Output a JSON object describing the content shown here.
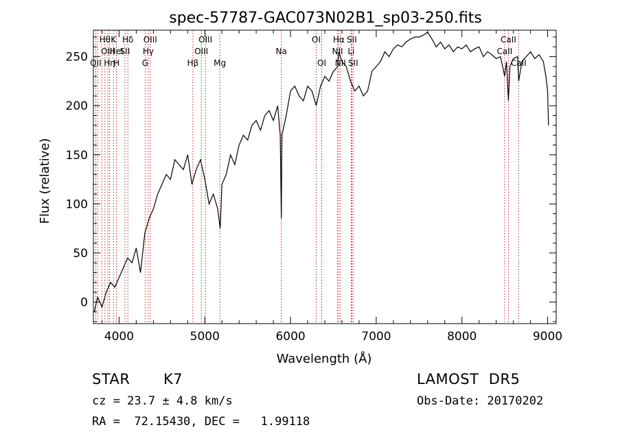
{
  "chart_data": {
    "type": "line",
    "title": "spec-57787-GAC073N02B1_sp03-250.fits",
    "xlabel": "Wavelength (Å)",
    "ylabel": "Flux (relative)",
    "xlim": [
      3700,
      9100
    ],
    "ylim": [
      -22,
      277
    ],
    "x_ticks": [
      4000,
      5000,
      6000,
      7000,
      8000,
      9000
    ],
    "x_tick_labels": [
      "4000",
      "5000",
      "6000",
      "7000",
      "8000",
      "9000"
    ],
    "y_ticks": [
      0,
      50,
      100,
      150,
      200,
      250
    ],
    "y_tick_labels": [
      "0",
      "50",
      "100",
      "150",
      "200",
      "250"
    ],
    "grid": false,
    "series": [
      {
        "color": "#000000",
        "x": [
          3710,
          3750,
          3800,
          3850,
          3900,
          3950,
          4000,
          4050,
          4100,
          4150,
          4200,
          4250,
          4300,
          4350,
          4400,
          4450,
          4500,
          4550,
          4600,
          4650,
          4700,
          4750,
          4800,
          4850,
          4900,
          4950,
          5000,
          5050,
          5100,
          5150,
          5180,
          5200,
          5250,
          5300,
          5350,
          5400,
          5450,
          5500,
          5550,
          5600,
          5650,
          5700,
          5750,
          5800,
          5850,
          5880,
          5893,
          5900,
          5950,
          6000,
          6050,
          6100,
          6150,
          6200,
          6250,
          6300,
          6350,
          6400,
          6450,
          6500,
          6550,
          6563,
          6600,
          6650,
          6700,
          6750,
          6800,
          6850,
          6900,
          6950,
          7000,
          7050,
          7100,
          7150,
          7200,
          7250,
          7300,
          7350,
          7400,
          7450,
          7500,
          7550,
          7600,
          7650,
          7700,
          7750,
          7800,
          7850,
          7900,
          7950,
          8000,
          8050,
          8100,
          8150,
          8200,
          8250,
          8300,
          8350,
          8400,
          8450,
          8498,
          8520,
          8542,
          8560,
          8600,
          8650,
          8662,
          8700,
          8750,
          8800,
          8850,
          8900,
          8950,
          8980,
          9000,
          9010
        ],
        "y": [
          -10,
          5,
          -5,
          10,
          20,
          15,
          25,
          35,
          45,
          40,
          55,
          30,
          70,
          85,
          95,
          110,
          120,
          130,
          125,
          145,
          140,
          135,
          150,
          120,
          135,
          145,
          125,
          100,
          110,
          95,
          75,
          120,
          130,
          150,
          140,
          160,
          170,
          165,
          180,
          185,
          175,
          190,
          195,
          185,
          200,
          170,
          85,
          170,
          190,
          215,
          220,
          210,
          205,
          220,
          215,
          200,
          220,
          230,
          225,
          235,
          240,
          255,
          245,
          240,
          225,
          215,
          220,
          210,
          215,
          235,
          240,
          245,
          255,
          250,
          258,
          262,
          260,
          265,
          268,
          270,
          270,
          272,
          275,
          268,
          260,
          265,
          258,
          262,
          255,
          260,
          258,
          262,
          255,
          258,
          260,
          250,
          255,
          252,
          248,
          250,
          230,
          245,
          205,
          240,
          248,
          250,
          225,
          245,
          250,
          255,
          248,
          252,
          245,
          230,
          215,
          180
        ]
      }
    ],
    "lines": [
      {
        "x": 3727,
        "labels": [
          "OII"
        ],
        "row": 2
      },
      {
        "x": 3750,
        "labels": [],
        "row": 0
      },
      {
        "x": 3798,
        "labels": [],
        "row": 0
      },
      {
        "x": 3835,
        "labels": [
          "Hθ"
        ],
        "row": 0
      },
      {
        "x": 3869,
        "labels": [
          "OIII"
        ],
        "row": 1
      },
      {
        "x": 3889,
        "labels": [
          "Hη"
        ],
        "row": 2
      },
      {
        "x": 3934,
        "labels": [
          "K"
        ],
        "row": 0
      },
      {
        "x": 3969,
        "labels": [
          "HeI"
        ],
        "row": 1
      },
      {
        "x": 3970,
        "labels": [
          "H"
        ],
        "row": 2
      },
      {
        "x": 4068,
        "labels": [
          "SII"
        ],
        "row": 1
      },
      {
        "x": 4102,
        "labels": [
          "Hδ"
        ],
        "row": 0
      },
      {
        "x": 4304,
        "labels": [
          "G"
        ],
        "row": 2
      },
      {
        "x": 4340,
        "labels": [
          "Hγ"
        ],
        "row": 1
      },
      {
        "x": 4363,
        "labels": [
          "OIII"
        ],
        "row": 0
      },
      {
        "x": 4861,
        "labels": [
          "Hβ"
        ],
        "row": 2
      },
      {
        "x": 4959,
        "labels": [
          "OIII"
        ],
        "row": 1
      },
      {
        "x": 5007,
        "labels": [
          "OIII"
        ],
        "row": 0
      },
      {
        "x": 5175,
        "labels": [
          "Mg"
        ],
        "row": 2
      },
      {
        "x": 5893,
        "labels": [
          "Na"
        ],
        "row": 1
      },
      {
        "x": 6300,
        "labels": [
          "OI"
        ],
        "row": 0
      },
      {
        "x": 6364,
        "labels": [
          "OI"
        ],
        "row": 2
      },
      {
        "x": 6548,
        "labels": [
          "NII"
        ],
        "row": 1
      },
      {
        "x": 6563,
        "labels": [
          "Hα"
        ],
        "row": 0
      },
      {
        "x": 6583,
        "labels": [
          "NII"
        ],
        "row": 2
      },
      {
        "x": 6708,
        "labels": [
          "Li"
        ],
        "row": 1
      },
      {
        "x": 6716,
        "labels": [
          "SII"
        ],
        "row": 0
      },
      {
        "x": 6731,
        "labels": [
          "SII"
        ],
        "row": 2
      },
      {
        "x": 8498,
        "labels": [
          "CaII"
        ],
        "row": 1
      },
      {
        "x": 8542,
        "labels": [
          "CaII"
        ],
        "row": 0
      },
      {
        "x": 8662,
        "labels": [
          "CaII"
        ],
        "row": 2
      }
    ]
  },
  "info": {
    "object_class": "STAR",
    "subclass": "K7",
    "survey": "LAMOST  DR5",
    "cz": "cz = 23.7 ± 4.8 km/s",
    "obs_date": "Obs-Date: 20170202",
    "coords": "RA =  72.15430, DEC =   1.99118"
  }
}
